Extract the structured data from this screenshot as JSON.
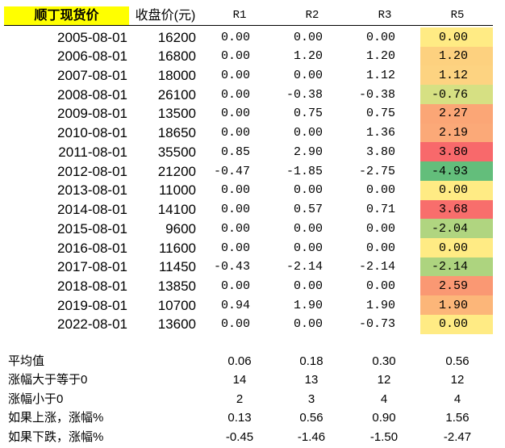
{
  "header": {
    "title": "顺丁现货价",
    "columns": [
      "收盘价(元)",
      "R1",
      "R2",
      "R3",
      "R5"
    ]
  },
  "table": {
    "rows": [
      [
        "2005-08-01",
        "16200",
        "0.00",
        "0.00",
        "0.00",
        "0.00"
      ],
      [
        "2006-08-01",
        "16800",
        "0.00",
        "1.20",
        "1.20",
        "1.20"
      ],
      [
        "2007-08-01",
        "18000",
        "0.00",
        "0.00",
        "1.12",
        "1.12"
      ],
      [
        "2008-08-01",
        "26100",
        "0.00",
        "-0.38",
        "-0.38",
        "-0.76"
      ],
      [
        "2009-08-01",
        "13500",
        "0.00",
        "0.75",
        "0.75",
        "2.27"
      ],
      [
        "2010-08-01",
        "18650",
        "0.00",
        "0.00",
        "1.36",
        "2.19"
      ],
      [
        "2011-08-01",
        "35500",
        "0.85",
        "2.90",
        "3.80",
        "3.80"
      ],
      [
        "2012-08-01",
        "21200",
        "-0.47",
        "-1.85",
        "-2.75",
        "-4.93"
      ],
      [
        "2013-08-01",
        "11000",
        "0.00",
        "0.00",
        "0.00",
        "0.00"
      ],
      [
        "2014-08-01",
        "14100",
        "0.00",
        "0.57",
        "0.71",
        "3.68"
      ],
      [
        "2015-08-01",
        "9600",
        "0.00",
        "0.00",
        "0.00",
        "-2.04"
      ],
      [
        "2016-08-01",
        "11600",
        "0.00",
        "0.00",
        "0.00",
        "0.00"
      ],
      [
        "2017-08-01",
        "11450",
        "-0.43",
        "-2.14",
        "-2.14",
        "-2.14"
      ],
      [
        "2018-08-01",
        "13850",
        "0.00",
        "0.00",
        "0.00",
        "2.59"
      ],
      [
        "2019-08-01",
        "10700",
        "0.94",
        "1.90",
        "1.90",
        "1.90"
      ],
      [
        "2022-08-01",
        "13600",
        "0.00",
        "0.00",
        "-0.73",
        "0.00"
      ]
    ],
    "r5_colors": [
      "#ffeb84",
      "#fdd17f",
      "#fdd381",
      "#d6e083",
      "#fba676",
      "#fba978",
      "#f8696b",
      "#63be7b",
      "#ffeb84",
      "#f86e6c",
      "#b0d580",
      "#ffeb84",
      "#add47f",
      "#fa9873",
      "#fcb679",
      "#ffeb84"
    ]
  },
  "summary": {
    "rows": [
      [
        "平均值",
        "0.06",
        "0.18",
        "0.30",
        "0.56"
      ],
      [
        "涨幅大于等于0",
        "14",
        "13",
        "12",
        "12"
      ],
      [
        "涨幅小于0",
        "2",
        "3",
        "4",
        "4"
      ],
      [
        "如果上涨，涨幅%",
        "0.13",
        "0.56",
        "0.90",
        "1.56"
      ],
      [
        "如果下跌，涨幅%",
        "-0.45",
        "-1.46",
        "-1.50",
        "-2.47"
      ]
    ]
  }
}
